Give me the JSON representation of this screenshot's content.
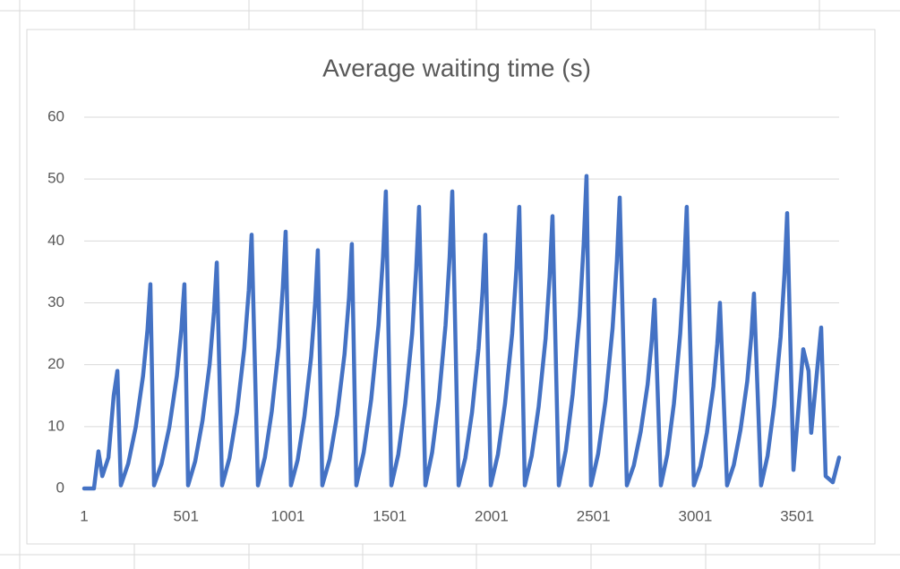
{
  "chart_data": {
    "type": "line",
    "title": "Average waiting time (s)",
    "x": [
      1,
      49,
      71,
      90,
      120,
      146,
      164,
      181,
      217,
      254,
      290,
      312,
      326,
      344,
      381,
      419,
      456,
      478,
      493,
      511,
      546,
      582,
      617,
      638,
      652,
      678,
      714,
      751,
      787,
      809,
      823,
      854,
      888,
      922,
      956,
      976,
      990,
      1016,
      1049,
      1082,
      1115,
      1135,
      1148,
      1170,
      1206,
      1243,
      1279,
      1301,
      1315,
      1337,
      1373,
      1410,
      1446,
      1468,
      1482,
      1509,
      1543,
      1577,
      1611,
      1631,
      1645,
      1676,
      1709,
      1742,
      1775,
      1795,
      1808,
      1839,
      1872,
      1905,
      1937,
      1957,
      1970,
      1997,
      2032,
      2067,
      2102,
      2123,
      2137,
      2164,
      2198,
      2232,
      2266,
      2286,
      2300,
      2331,
      2365,
      2399,
      2433,
      2453,
      2467,
      2489,
      2524,
      2560,
      2595,
      2616,
      2630,
      2665,
      2699,
      2733,
      2767,
      2787,
      2801,
      2832,
      2864,
      2896,
      2927,
      2946,
      2959,
      2994,
      3026,
      3058,
      3090,
      3109,
      3122,
      3157,
      3190,
      3223,
      3256,
      3276,
      3289,
      3324,
      3356,
      3388,
      3420,
      3439,
      3452,
      3483,
      3531,
      3557,
      3570,
      3619,
      3641,
      3676,
      3707
    ],
    "series": [
      {
        "name": "Average waiting time (s)",
        "color": "#4472c4",
        "values": [
          0,
          0,
          6,
          2,
          5,
          15,
          19,
          0.5,
          4.0,
          9.9,
          18.2,
          25.7,
          33,
          0.5,
          4.0,
          9.9,
          18.2,
          25.7,
          33,
          0.5,
          4.4,
          11.0,
          20.1,
          28.5,
          36.5,
          0.5,
          4.9,
          12.3,
          22.6,
          32.0,
          41,
          0.5,
          5.0,
          12.5,
          22.8,
          32.4,
          41.5,
          0.5,
          4.6,
          11.6,
          21.2,
          30.0,
          38.5,
          0.5,
          4.7,
          11.9,
          21.7,
          30.8,
          39.5,
          0.5,
          5.8,
          14.4,
          26.4,
          37.4,
          48,
          0.5,
          5.5,
          13.7,
          25.0,
          35.5,
          45.5,
          0.5,
          5.8,
          14.4,
          26.4,
          37.4,
          48,
          0.5,
          4.9,
          12.3,
          22.6,
          32.0,
          41,
          0.5,
          5.5,
          13.7,
          25.0,
          35.5,
          45.5,
          0.5,
          5.3,
          13.2,
          24.2,
          34.3,
          44,
          0.5,
          6.1,
          15.2,
          27.8,
          39.4,
          50.5,
          0.5,
          5.6,
          14.1,
          25.9,
          36.7,
          47,
          0.5,
          3.7,
          9.2,
          16.8,
          23.8,
          30.5,
          0.5,
          5.5,
          13.7,
          25.0,
          35.5,
          45.5,
          0.5,
          3.6,
          9.0,
          16.5,
          23.4,
          30,
          0.5,
          3.8,
          9.5,
          17.3,
          24.6,
          31.5,
          0.5,
          5.3,
          13.4,
          24.5,
          34.7,
          44.5,
          3,
          22.5,
          19,
          9,
          26,
          2,
          1,
          5
        ]
      }
    ],
    "xlim": [
      1,
      3707
    ],
    "xticks": [
      1,
      501,
      1001,
      1501,
      2001,
      2501,
      3001,
      3501
    ],
    "ylim": [
      0,
      60
    ],
    "yticks": [
      0,
      10,
      20,
      30,
      40,
      50,
      60
    ],
    "grid": true
  }
}
